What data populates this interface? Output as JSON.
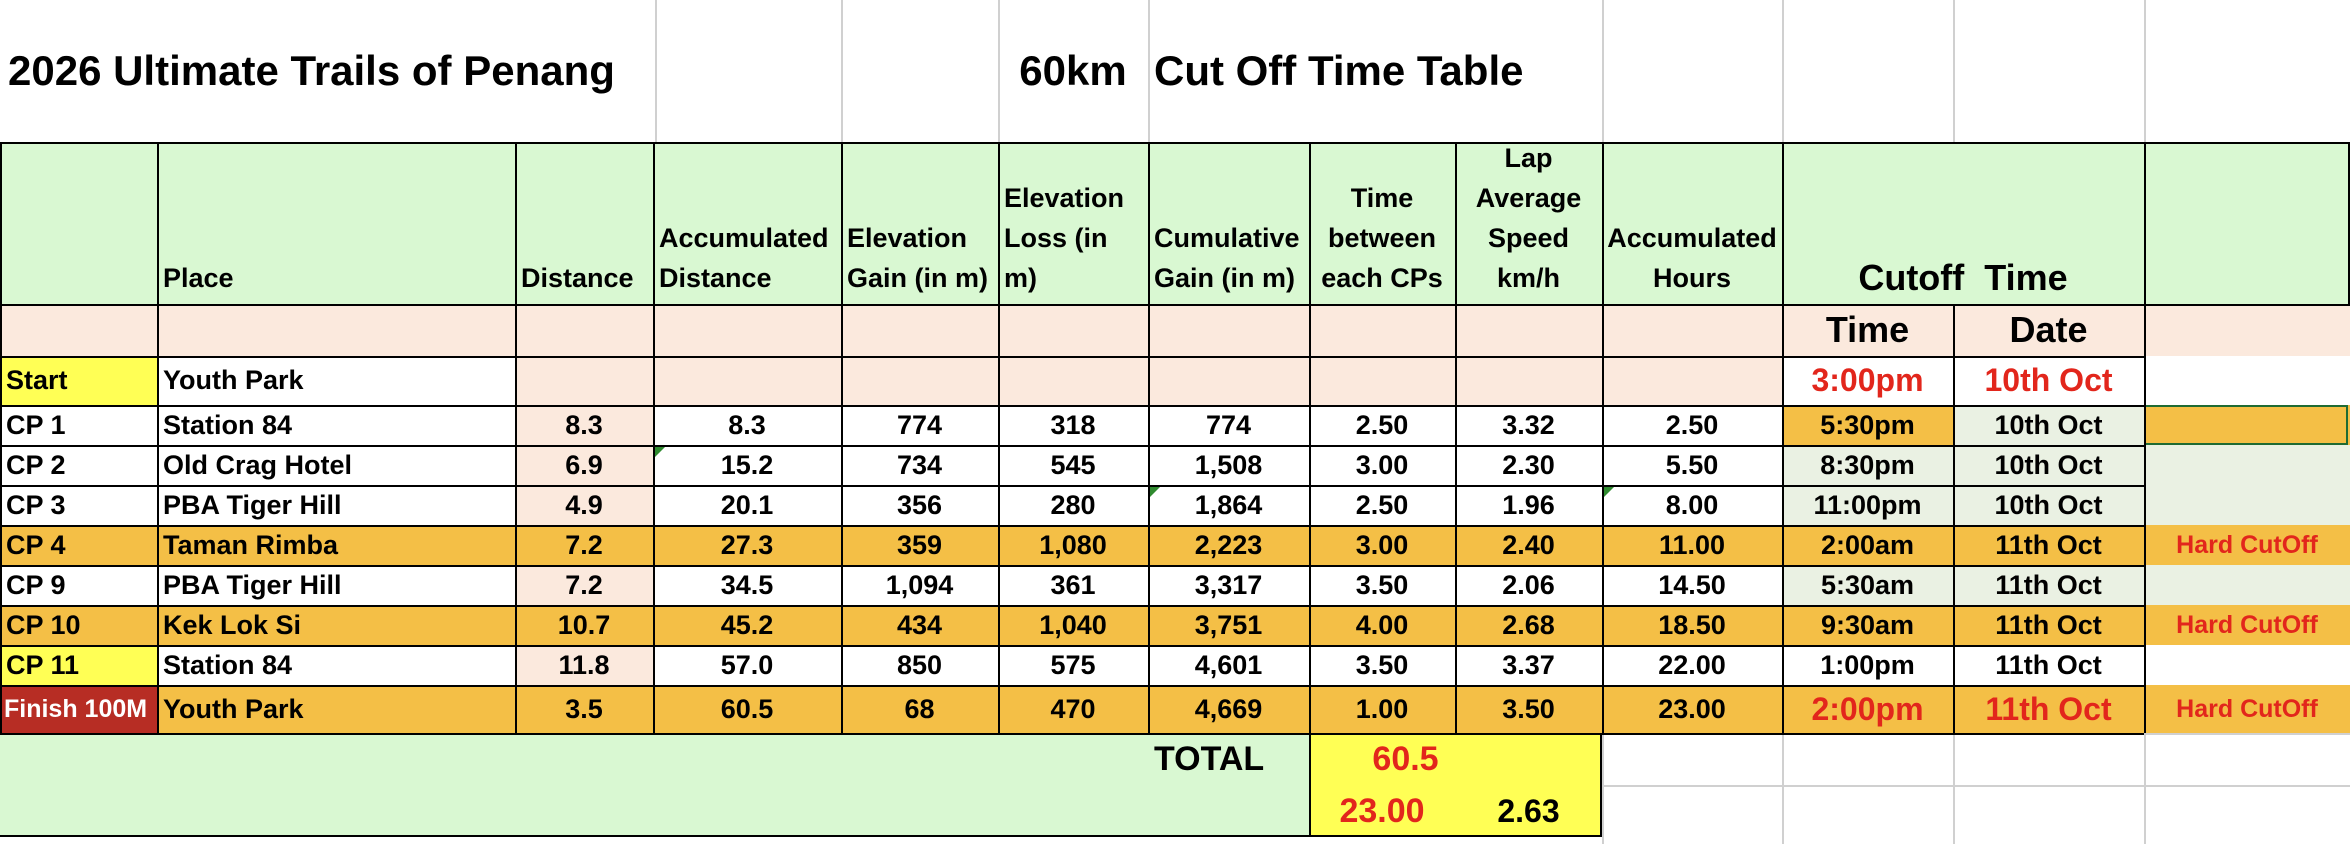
{
  "title": {
    "event": "2026 Ultimate Trails of Penang",
    "distance": "60km",
    "table_name": "Cut Off Time Table"
  },
  "headers": {
    "place": "Place",
    "distance": "Distance",
    "accum_distance": "Accumulated Distance",
    "elev_gain": "Elevation Gain (in m)",
    "elev_loss": "Elevation Loss (in m)",
    "cum_gain": "Cumulative Gain (in m)",
    "time_between": "Time between each CPs",
    "lap_speed": "Lap Average Speed km/h",
    "accum_hours": "Accumulated Hours",
    "cutoff": "Cutoff  Time",
    "time": "Time",
    "date": "Date"
  },
  "start": {
    "cp": "Start",
    "place": "Youth Park",
    "time": "3:00pm",
    "date": "10th Oct"
  },
  "rows": [
    {
      "cp": "CP 1",
      "place": "Station 84",
      "distance": "8.3",
      "accum": "8.3",
      "gain": "774",
      "loss": "318",
      "cum": "774",
      "between": "2.50",
      "speed": "3.32",
      "hours": "2.50",
      "time": "5:30pm",
      "date": "10th Oct",
      "note": ""
    },
    {
      "cp": "CP 2",
      "place": "Old Crag Hotel",
      "distance": "6.9",
      "accum": "15.2",
      "gain": "734",
      "loss": "545",
      "cum": "1,508",
      "between": "3.00",
      "speed": "2.30",
      "hours": "5.50",
      "time": "8:30pm",
      "date": "10th Oct",
      "note": ""
    },
    {
      "cp": "CP 3",
      "place": "PBA Tiger Hill",
      "distance": "4.9",
      "accum": "20.1",
      "gain": "356",
      "loss": "280",
      "cum": "1,864",
      "between": "2.50",
      "speed": "1.96",
      "hours": "8.00",
      "time": "11:00pm",
      "date": "10th Oct",
      "note": ""
    },
    {
      "cp": "CP 4",
      "place": "Taman Rimba",
      "distance": "7.2",
      "accum": "27.3",
      "gain": "359",
      "loss": "1,080",
      "cum": "2,223",
      "between": "3.00",
      "speed": "2.40",
      "hours": "11.00",
      "time": "2:00am",
      "date": "11th Oct",
      "note": "Hard CutOff"
    },
    {
      "cp": "CP 9",
      "place": "PBA Tiger Hill",
      "distance": "7.2",
      "accum": "34.5",
      "gain": "1,094",
      "loss": "361",
      "cum": "3,317",
      "between": "3.50",
      "speed": "2.06",
      "hours": "14.50",
      "time": "5:30am",
      "date": "11th Oct",
      "note": ""
    },
    {
      "cp": "CP 10",
      "place": "Kek Lok Si",
      "distance": "10.7",
      "accum": "45.2",
      "gain": "434",
      "loss": "1,040",
      "cum": "3,751",
      "between": "4.00",
      "speed": "2.68",
      "hours": "18.50",
      "time": "9:30am",
      "date": "11th Oct",
      "note": "Hard CutOff"
    },
    {
      "cp": "CP 11",
      "place": "Station 84",
      "distance": "11.8",
      "accum": "57.0",
      "gain": "850",
      "loss": "575",
      "cum": "4,601",
      "between": "3.50",
      "speed": "3.37",
      "hours": "22.00",
      "time": "1:00pm",
      "date": "11th Oct",
      "note": ""
    },
    {
      "cp": "Finish 100M",
      "place": "Youth Park",
      "distance": "3.5",
      "accum": "60.5",
      "gain": "68",
      "loss": "470",
      "cum": "4,669",
      "between": "1.00",
      "speed": "3.50",
      "hours": "23.00",
      "time": "2:00pm",
      "date": "11th Oct",
      "note": "Hard CutOff"
    }
  ],
  "total": {
    "label": "TOTAL",
    "distance": "60.5",
    "hours": "23.00",
    "avg_speed": "2.63"
  },
  "colors": {
    "header_green": "#d9f8d2",
    "peach": "#fbe9dd",
    "amber": "#f4bf46",
    "yellow": "#ffff55",
    "finish_maroon": "#b72d24",
    "red_text": "#e2261c"
  }
}
